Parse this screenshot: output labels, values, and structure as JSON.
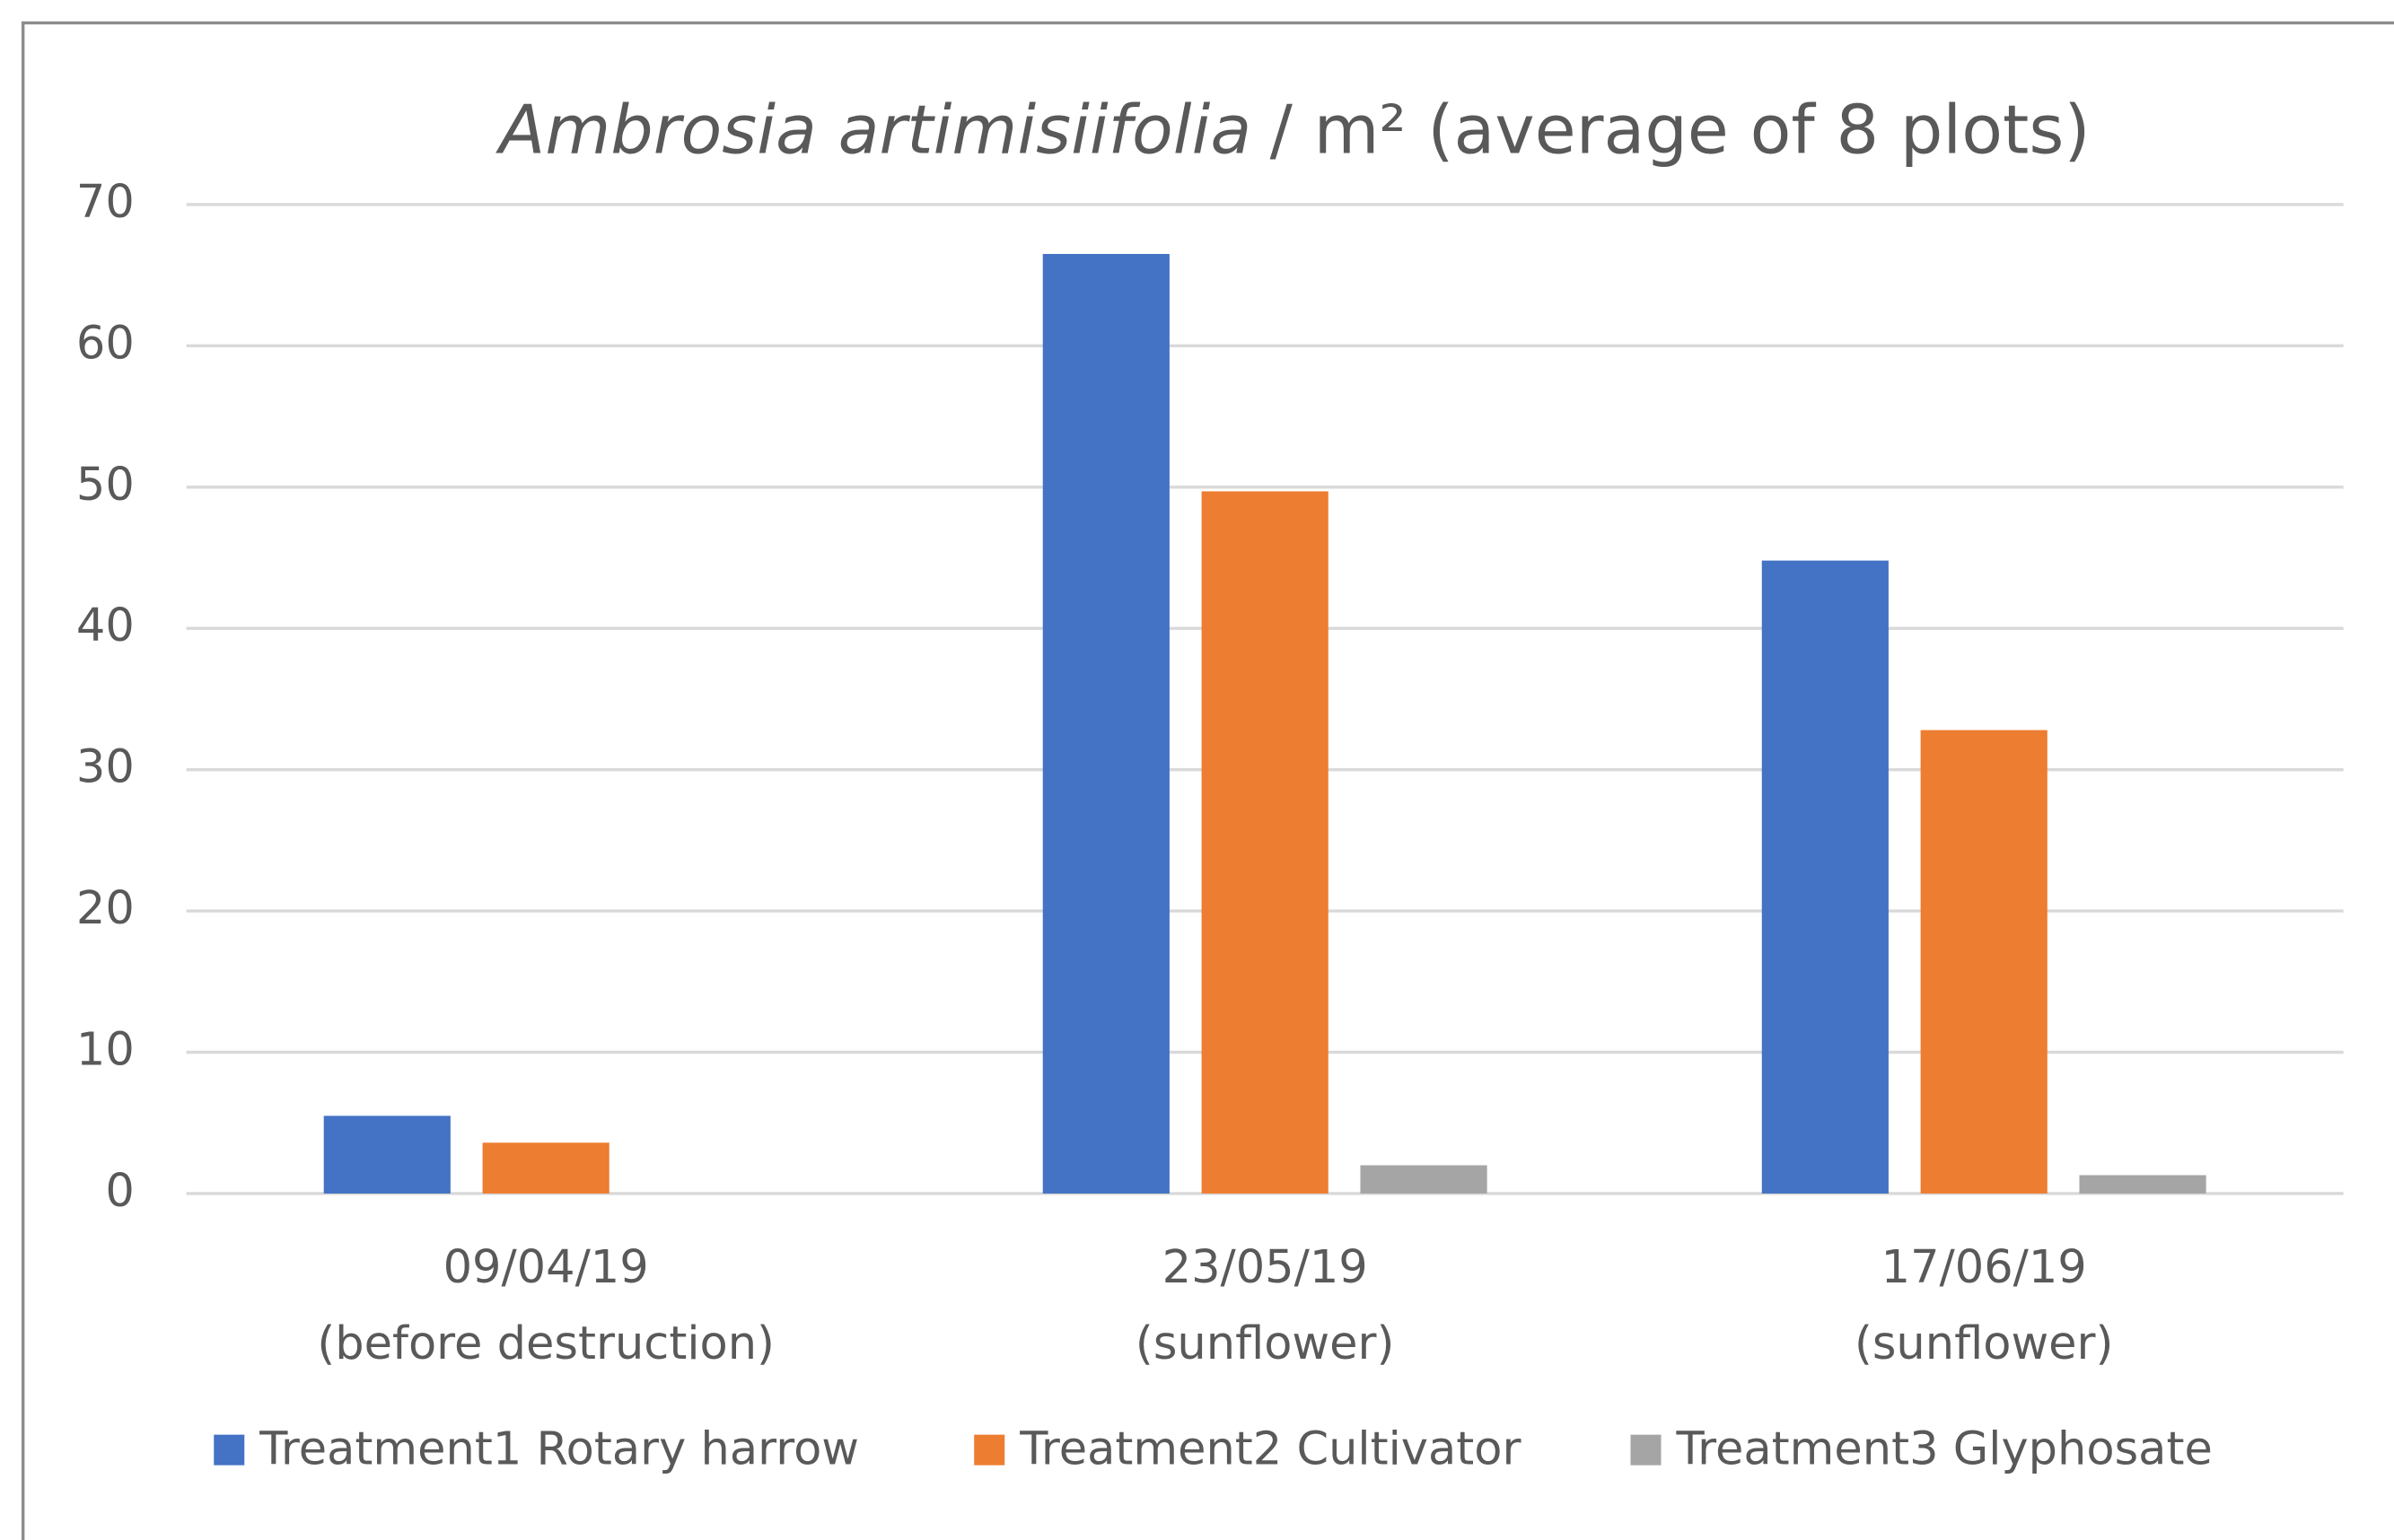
{
  "chart_data": {
    "type": "bar",
    "title": [
      "Ambrosia artimisiifolia",
      "/ m² (average of 8 plots)"
    ],
    "categories": [
      [
        "09/04/19",
        "(before destruction)"
      ],
      [
        "23/05/19",
        "(sunflower)"
      ],
      [
        "17/06/19",
        "(sunflower)"
      ]
    ],
    "series": [
      {
        "name": "Treatment1 Rotary harrow",
        "color": "#4472c4",
        "values": [
          5.5,
          66.5,
          44.8
        ]
      },
      {
        "name": "Treatment2 Cultivator",
        "color": "#ed7d31",
        "values": [
          3.6,
          49.7,
          32.8
        ]
      },
      {
        "name": "Treatment3 Glyphosate",
        "color": "#a5a5a5",
        "values": [
          0,
          2,
          1.3
        ]
      }
    ],
    "ylim": [
      0,
      70
    ],
    "yticks": [
      0,
      10,
      20,
      30,
      40,
      50,
      60,
      70
    ],
    "grid": true,
    "legend": "bottom"
  }
}
